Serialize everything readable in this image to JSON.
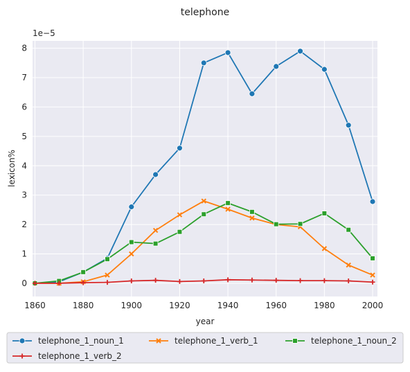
{
  "chart_data": {
    "type": "line",
    "title": "telephone",
    "xlabel": "year",
    "ylabel": "lexicon%",
    "y_multiplier_label": "1e−5",
    "xlim": [
      1859,
      2002
    ],
    "ylim": [
      -0.45,
      8.25
    ],
    "x_ticks": [
      1860,
      1880,
      1900,
      1920,
      1940,
      1960,
      1980,
      2000
    ],
    "y_ticks": [
      0,
      1,
      2,
      3,
      4,
      5,
      6,
      7,
      8
    ],
    "grid": true,
    "legend_position": "bottom",
    "x": [
      1860,
      1870,
      1880,
      1890,
      1900,
      1910,
      1920,
      1930,
      1940,
      1950,
      1960,
      1970,
      1980,
      1990,
      2000
    ],
    "series": [
      {
        "name": "telephone_1_noun_1",
        "color": "#1f77b4",
        "marker": "circle",
        "values": [
          0.0,
          0.05,
          0.38,
          0.85,
          2.6,
          3.7,
          4.6,
          7.5,
          7.85,
          6.45,
          7.38,
          7.9,
          7.28,
          5.38,
          2.78
        ]
      },
      {
        "name": "telephone_1_verb_1",
        "color": "#ff7f0e",
        "marker": "x",
        "values": [
          0.0,
          0.0,
          0.05,
          0.28,
          1.0,
          1.8,
          2.33,
          2.8,
          2.52,
          2.22,
          2.0,
          1.92,
          1.18,
          0.62,
          0.28
        ]
      },
      {
        "name": "telephone_1_noun_2",
        "color": "#2ca02c",
        "marker": "square",
        "values": [
          0.0,
          0.08,
          0.38,
          0.82,
          1.4,
          1.35,
          1.75,
          2.35,
          2.73,
          2.43,
          2.01,
          2.02,
          2.38,
          1.82,
          0.85
        ]
      },
      {
        "name": "telephone_1_verb_2",
        "color": "#d62728",
        "marker": "plus",
        "values": [
          0.0,
          0.0,
          0.02,
          0.03,
          0.08,
          0.1,
          0.06,
          0.08,
          0.12,
          0.11,
          0.1,
          0.09,
          0.09,
          0.08,
          0.04
        ]
      }
    ]
  }
}
